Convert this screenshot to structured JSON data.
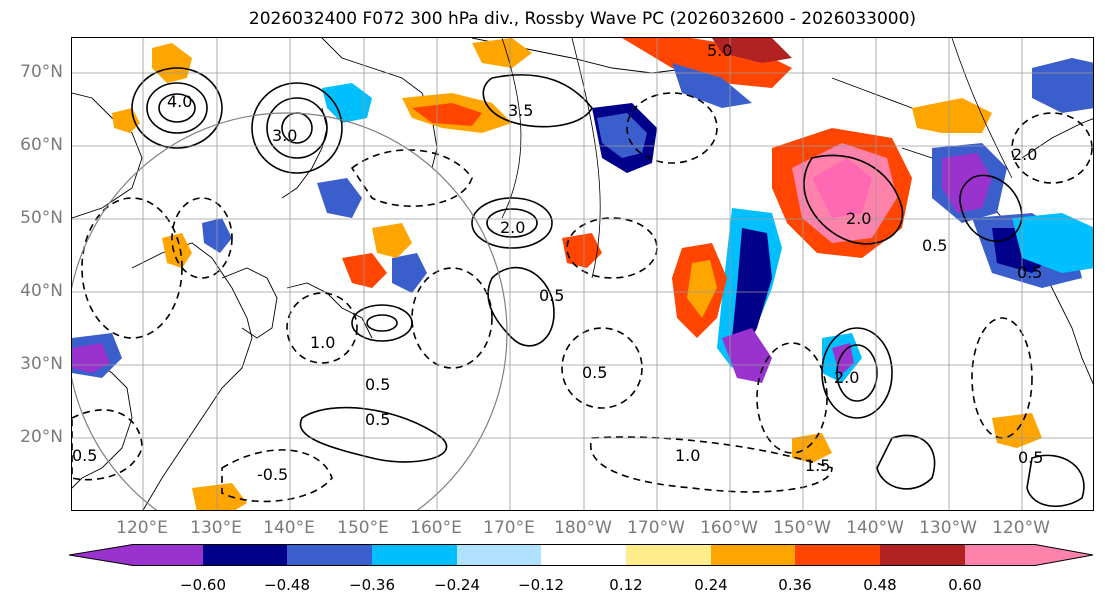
{
  "title": "2026032400 F072 300 hPa div., Rossby Wave PC (2026032600 - 2026033000)",
  "lat_labels": [
    "70°N",
    "60°N",
    "50°N",
    "40°N",
    "30°N",
    "20°N"
  ],
  "lon_labels": [
    "120°E",
    "130°E",
    "140°E",
    "150°E",
    "160°E",
    "170°E",
    "180°W",
    "170°W",
    "160°W",
    "150°W",
    "140°W",
    "130°W",
    "120°W"
  ],
  "colorbar": {
    "ticks": [
      "−0.60",
      "−0.48",
      "−0.36",
      "−0.24",
      "−0.12",
      "0.12",
      "0.24",
      "0.36",
      "0.48",
      "0.60"
    ],
    "colors": [
      "#9a32cd",
      "#00008b",
      "#3a5fcd",
      "#00bfff",
      "#b0e2ff",
      "#ffffff",
      "#ffec8b",
      "#ffa500",
      "#ff4500",
      "#b22222",
      "#ff82ab"
    ]
  },
  "contour_labels": [
    {
      "text": "4.0"
    },
    {
      "text": "3.0"
    },
    {
      "text": "2.0"
    },
    {
      "text": "1.0"
    },
    {
      "text": "0.5"
    },
    {
      "text": "0.5"
    },
    {
      "text": "0.5"
    },
    {
      "text": "-0.5"
    },
    {
      "text": "0.5"
    },
    {
      "text": "1.0"
    },
    {
      "text": "0.5"
    },
    {
      "text": "2.0"
    },
    {
      "text": "1.5"
    },
    {
      "text": "0.5"
    },
    {
      "text": "2.0"
    },
    {
      "text": "5.0"
    },
    {
      "text": "2.0"
    },
    {
      "text": "0.5"
    },
    {
      "text": "3.5"
    },
    {
      "text": "0.5"
    }
  ]
}
